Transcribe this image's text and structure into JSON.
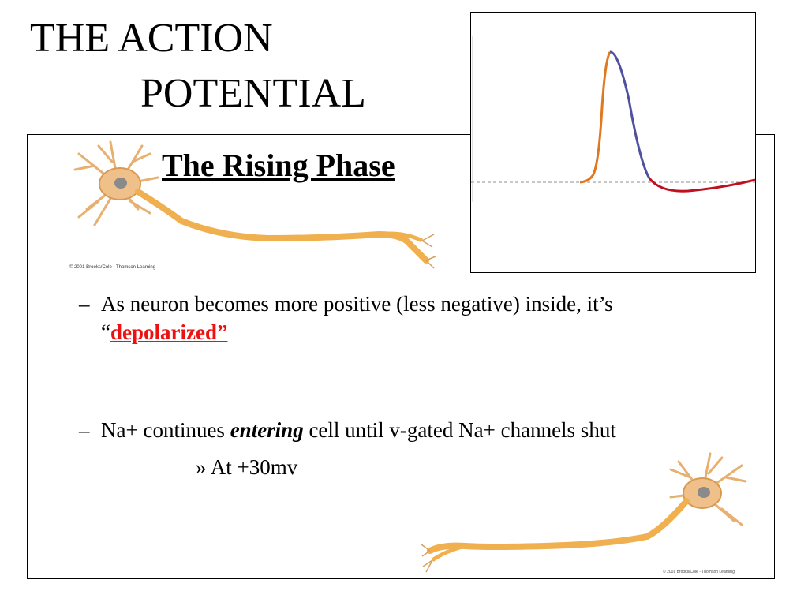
{
  "slide": {
    "title_line1": "THE ACTION",
    "title_line2": "POTENTIAL",
    "subtitle": "The Rising Phase",
    "copyright_1": "© 2001 Brooks/Cole - Thomson Learning",
    "copyright_2": "© 2001 Brooks/Cole - Thomson Learning"
  },
  "bullets": [
    {
      "dash": "–",
      "text_before": "As neuron becomes more positive (less negative) inside, it’s",
      "quote_open": "“",
      "highlight": "depolarized”"
    },
    {
      "dash": "–",
      "text_before": "Na+ continues ",
      "emphasis": "entering",
      "text_after": " cell until v-gated Na+ channels shut"
    }
  ],
  "sub_bullet": {
    "marker": "»",
    "text": "At +30mv"
  },
  "colors": {
    "rising": "#e07820",
    "falling": "#5050a0",
    "undershoot": "#c01020",
    "highlight": "#ee1111"
  }
}
